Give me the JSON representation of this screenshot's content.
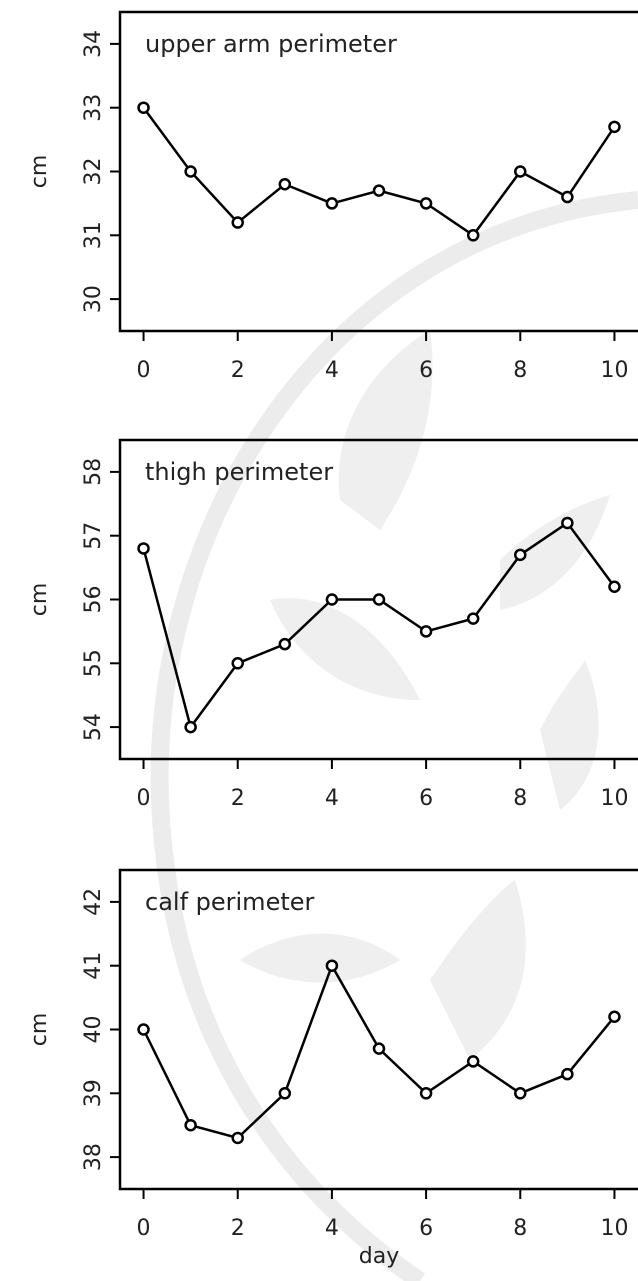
{
  "chart_data": [
    {
      "type": "line",
      "title": "upper arm perimeter",
      "ylabel": "cm",
      "x": [
        0,
        1,
        2,
        3,
        4,
        5,
        6,
        7,
        8,
        9,
        10
      ],
      "values": [
        33.0,
        32.0,
        31.2,
        31.8,
        31.5,
        31.7,
        31.5,
        31.0,
        32.0,
        31.6,
        32.7
      ],
      "color": "#000000",
      "xlim": [
        -0.5,
        10.5
      ],
      "xticks": [
        0,
        2,
        4,
        6,
        8,
        10
      ],
      "ylim": [
        29.5,
        34.5
      ],
      "yticks": [
        30,
        31,
        32,
        33,
        34
      ]
    },
    {
      "type": "line",
      "title": "thigh perimeter",
      "ylabel": "cm",
      "x": [
        0,
        1,
        2,
        3,
        4,
        5,
        6,
        7,
        8,
        9,
        10
      ],
      "values": [
        56.8,
        54.0,
        55.0,
        55.3,
        56.0,
        56.0,
        55.5,
        55.7,
        56.7,
        57.2,
        56.2
      ],
      "color": "#000000",
      "xlim": [
        -0.5,
        10.5
      ],
      "xticks": [
        0,
        2,
        4,
        6,
        8,
        10
      ],
      "ylim": [
        53.5,
        58.5
      ],
      "yticks": [
        54,
        55,
        56,
        57,
        58
      ]
    },
    {
      "type": "line",
      "title": "calf perimeter",
      "ylabel": "cm",
      "xlabel": "day",
      "x": [
        0,
        1,
        2,
        3,
        4,
        5,
        6,
        7,
        8,
        9,
        10
      ],
      "values": [
        40.0,
        38.5,
        38.3,
        39.0,
        41.0,
        39.7,
        39.0,
        39.5,
        39.0,
        39.3,
        40.2
      ],
      "color": "#000000",
      "xlim": [
        -0.5,
        10.5
      ],
      "xticks": [
        0,
        2,
        4,
        6,
        8,
        10
      ],
      "ylim": [
        37.5,
        42.5
      ],
      "yticks": [
        38,
        39,
        40,
        41,
        42
      ]
    }
  ]
}
